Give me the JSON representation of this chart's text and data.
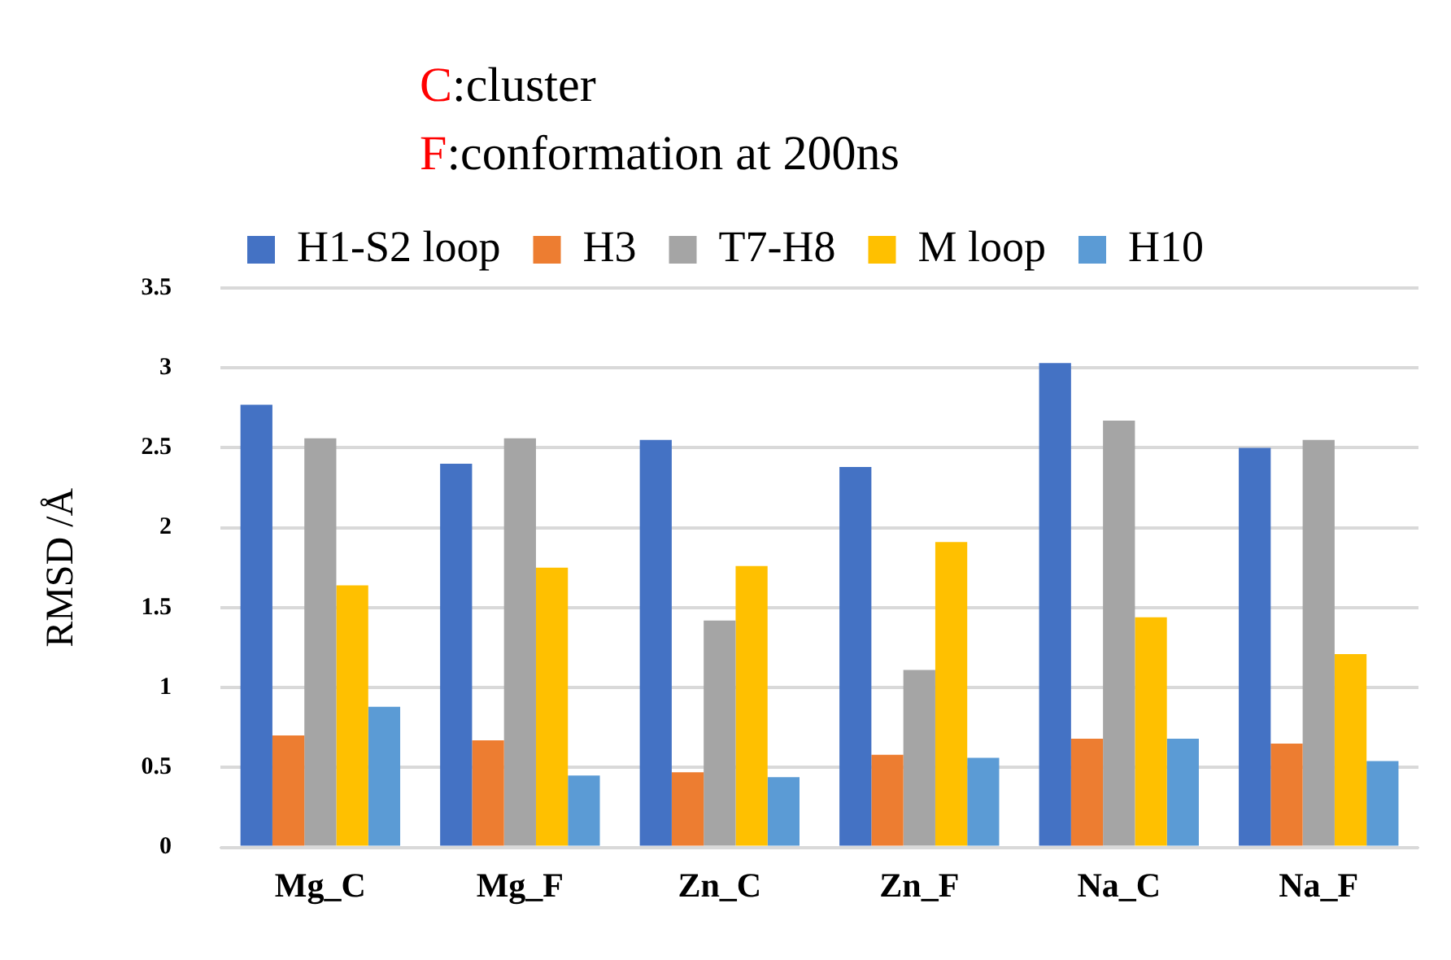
{
  "chart_data": {
    "type": "bar",
    "title": "C:cluster",
    "subtitle": "F:conformation at 200ns",
    "ylabel": "RMSD /Å",
    "categories": [
      "Mg_C",
      "Mg_F",
      "Zn_C",
      "Zn_F",
      "Na_C",
      "Na_F"
    ],
    "series": [
      {
        "name": "H1-S2 loop",
        "color": "#4472c4",
        "values": [
          2.77,
          2.4,
          2.55,
          2.38,
          3.03,
          2.5
        ]
      },
      {
        "name": "H3",
        "color": "#ed7d31",
        "values": [
          0.7,
          0.67,
          0.47,
          0.58,
          0.68,
          0.65
        ]
      },
      {
        "name": "T7-H8",
        "color": "#a5a5a5",
        "values": [
          2.56,
          2.56,
          1.42,
          1.11,
          2.67,
          2.55
        ]
      },
      {
        "name": "M loop",
        "color": "#ffc000",
        "values": [
          1.64,
          1.75,
          1.76,
          1.91,
          1.44,
          1.21
        ]
      },
      {
        "name": "H10",
        "color": "#5b9bd5",
        "values": [
          0.88,
          0.45,
          0.44,
          0.56,
          0.68,
          0.54
        ]
      }
    ],
    "ylim": [
      0,
      3.5
    ],
    "yticks": [
      0,
      0.5,
      1,
      1.5,
      2,
      2.5,
      3,
      3.5
    ],
    "grid": "y",
    "legend": "top"
  }
}
